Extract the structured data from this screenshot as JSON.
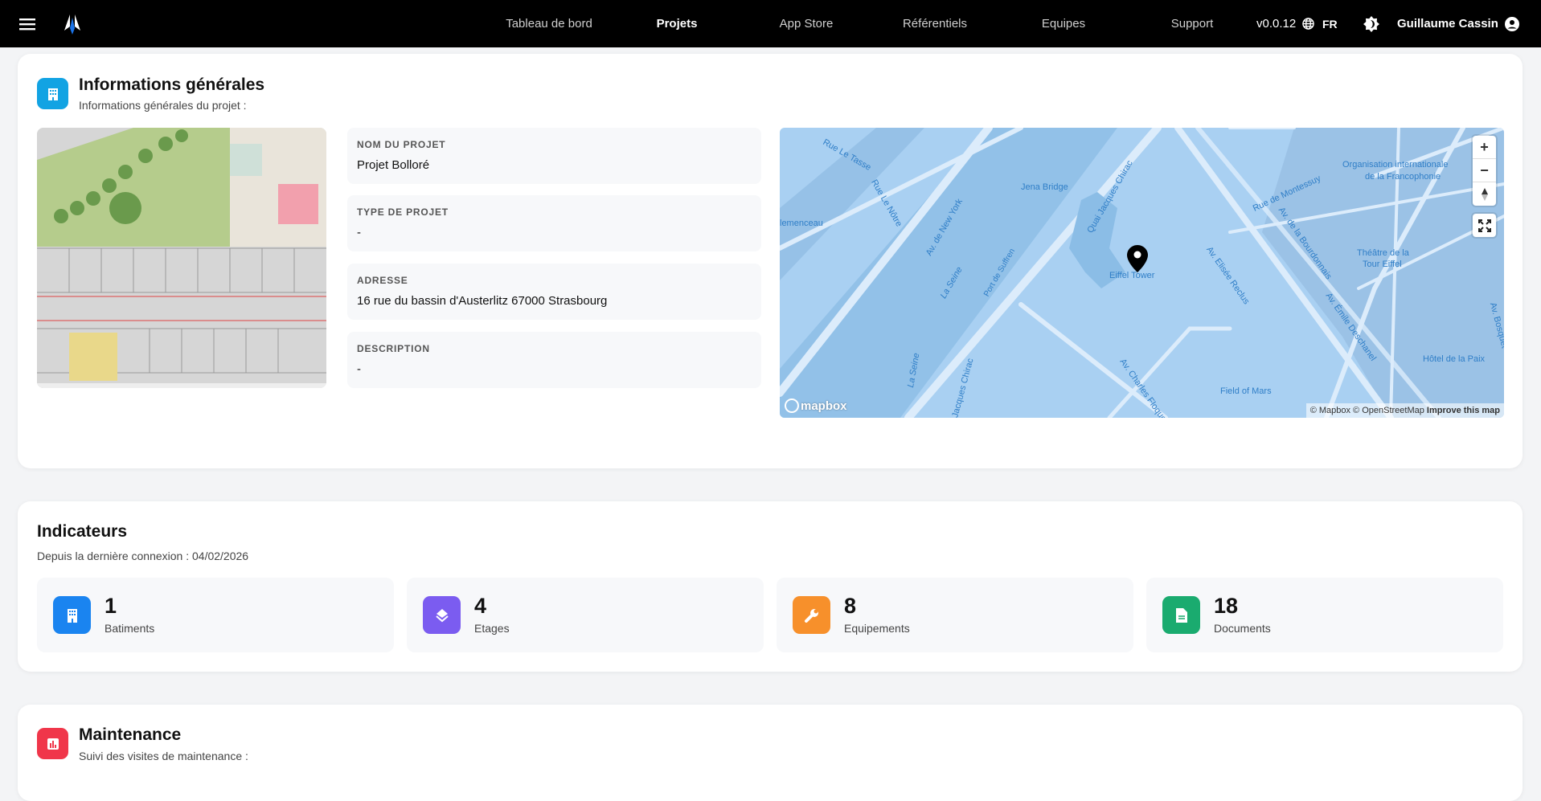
{
  "header": {
    "nav": [
      "Tableau de bord",
      "Projets",
      "App Store",
      "Référentiels",
      "Equipes",
      "Support"
    ],
    "active": "Projets",
    "version": "v0.0.12",
    "language": "FR",
    "user": "Guillaume Cassin",
    "icons": [
      "menu-icon",
      "logo-icon",
      "globe-icon",
      "theme-toggle-icon",
      "user-account-icon"
    ]
  },
  "info": {
    "title": "Informations générales",
    "subtitle": "Informations générales du projet :",
    "icon": "building-icon",
    "color": "#12a3e3",
    "fields": [
      {
        "label": "NOM DU PROJET",
        "value": "Projet Bolloré"
      },
      {
        "label": "TYPE DE PROJET",
        "value": "-"
      },
      {
        "label": "ADRESSE",
        "value": "16 rue du bassin d'Austerlitz 67000 Strasbourg"
      },
      {
        "label": "DESCRIPTION",
        "value": "-"
      }
    ]
  },
  "map": {
    "labels": [
      "Rue Le Tasse",
      "Jena Bridge",
      "Quai Jacques Chirac",
      "Rue Le Nôtre",
      "Av. de New York",
      "lemenceau",
      "La Seine",
      "Port de Suffren",
      "Eiffel Tower",
      "Rue de Montessuy",
      "Organisation internationale",
      "de la Francophonie",
      "Av. de la Bourdonnais",
      "Av. Elisée Reclus",
      "Théâtre de la",
      "Tour Eiffel",
      "Hôtel de la Paix",
      "La Seine",
      "Jacques Chirac",
      "Av. Charles Floquet",
      "Field of Mars",
      "Av. Émile Deschanel",
      "Av. Bosquet"
    ],
    "logo": "mapbox",
    "attribution": "© Mapbox © OpenStreetMap",
    "improve": "Improve this map",
    "controls": {
      "zoom_in": "+",
      "zoom_out": "−"
    }
  },
  "indicators": {
    "title": "Indicateurs",
    "subtitle": "Depuis la dernière connexion : 04/02/2026",
    "stats": [
      {
        "value": "1",
        "label": "Batiments",
        "color": "#1a84f0",
        "icon": "building-icon"
      },
      {
        "value": "4",
        "label": "Etages",
        "color": "#7b5cf0",
        "icon": "layers-icon"
      },
      {
        "value": "8",
        "label": "Equipements",
        "color": "#f7902b",
        "icon": "wrench-icon"
      },
      {
        "value": "18",
        "label": "Documents",
        "color": "#1aab6f",
        "icon": "document-icon"
      }
    ]
  },
  "maintenance": {
    "title": "Maintenance",
    "subtitle": "Suivi des visites de maintenance :",
    "icon": "chart-icon",
    "color": "#f0364a"
  }
}
